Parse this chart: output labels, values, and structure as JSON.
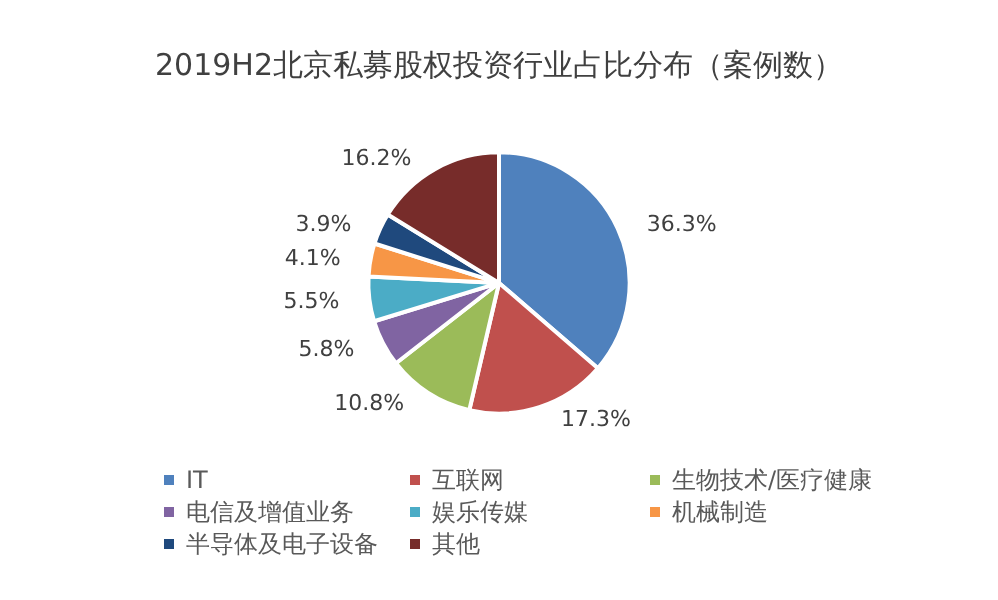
{
  "chart_data": {
    "type": "pie",
    "title": "2019H2北京私募股权投资行业占比分布（案例数）",
    "categories": [
      "IT",
      "互联网",
      "生物技术/医疗健康",
      "电信及增值业务",
      "娱乐传媒",
      "机械制造",
      "半导体及电子设备",
      "其他"
    ],
    "values": [
      36.3,
      17.3,
      10.8,
      5.8,
      5.5,
      4.1,
      3.9,
      16.2
    ],
    "colors": [
      "#4f81bd",
      "#c0504d",
      "#9bbb59",
      "#8064a2",
      "#4bacc6",
      "#f79646",
      "#1f497d",
      "#772c2a"
    ],
    "value_labels": [
      "36.3%",
      "17.3%",
      "10.8%",
      "5.8%",
      "5.5%",
      "4.1%",
      "3.9%",
      "16.2%"
    ],
    "legend": "bottom"
  }
}
